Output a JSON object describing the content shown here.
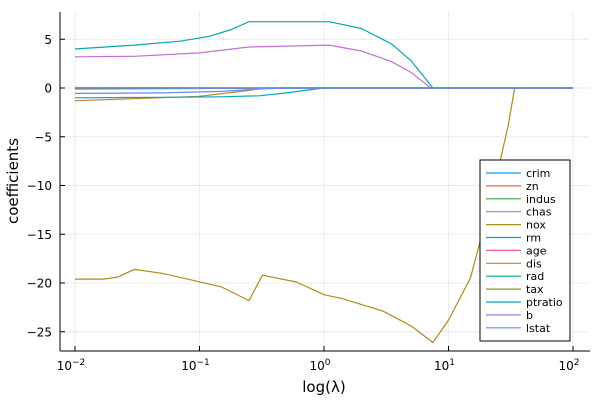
{
  "chart_data": {
    "type": "line",
    "title": "",
    "xlabel": "log(λ)",
    "ylabel": "coefficients",
    "xscale": "log10",
    "xlim": [
      0.008,
      120
    ],
    "ylim": [
      -27.3,
      7.8
    ],
    "grid": true,
    "legend_position": "bottom-right",
    "x_ticks": [
      {
        "value": 0.01,
        "base": "10",
        "exp": "−2"
      },
      {
        "value": 0.1,
        "base": "10",
        "exp": "−1"
      },
      {
        "value": 1,
        "base": "10",
        "exp": "0"
      },
      {
        "value": 10,
        "base": "10",
        "exp": "1"
      },
      {
        "value": 100,
        "base": "10",
        "exp": "2"
      }
    ],
    "y_ticks": [
      {
        "value": 5,
        "label": "5"
      },
      {
        "value": 0,
        "label": "0"
      },
      {
        "value": -5,
        "label": "−5"
      },
      {
        "value": -10,
        "label": "−10"
      },
      {
        "value": -15,
        "label": "−15"
      },
      {
        "value": -20,
        "label": "−20"
      },
      {
        "value": -25,
        "label": "−25"
      }
    ],
    "series": [
      {
        "name": "crim",
        "color": "#009af9",
        "points": [
          [
            0.01,
            -0.1
          ],
          [
            1,
            0
          ],
          [
            100,
            0
          ]
        ]
      },
      {
        "name": "zn",
        "color": "#e26f46",
        "points": [
          [
            0.01,
            0.05
          ],
          [
            1,
            0
          ],
          [
            100,
            0
          ]
        ]
      },
      {
        "name": "indus",
        "color": "#3da44d",
        "points": [
          [
            0.01,
            0.02
          ],
          [
            1,
            0
          ],
          [
            100,
            0
          ]
        ]
      },
      {
        "name": "chas",
        "color": "#c271d2",
        "points": [
          [
            0.01,
            3.2
          ],
          [
            0.03,
            3.25
          ],
          [
            0.1,
            3.6
          ],
          [
            0.25,
            4.2
          ],
          [
            1.1,
            4.4
          ],
          [
            2,
            3.8
          ],
          [
            3.5,
            2.7
          ],
          [
            5,
            1.6
          ],
          [
            6.3,
            0.6
          ],
          [
            7.2,
            0
          ],
          [
            100,
            0
          ]
        ]
      },
      {
        "name": "nox",
        "color": "#ac8d18",
        "points": [
          [
            0.01,
            -19.6
          ],
          [
            0.017,
            -19.6
          ],
          [
            0.022,
            -19.4
          ],
          [
            0.03,
            -18.6
          ],
          [
            0.05,
            -19.0
          ],
          [
            0.08,
            -19.6
          ],
          [
            0.15,
            -20.4
          ],
          [
            0.25,
            -21.8
          ],
          [
            0.32,
            -19.2
          ],
          [
            0.6,
            -19.9
          ],
          [
            1.0,
            -21.2
          ],
          [
            1.4,
            -21.6
          ],
          [
            3,
            -22.9
          ],
          [
            5,
            -24.4
          ],
          [
            7.5,
            -26.1
          ],
          [
            10,
            -23.8
          ],
          [
            15,
            -19.5
          ],
          [
            22,
            -11.5
          ],
          [
            30,
            -4
          ],
          [
            34,
            0
          ],
          [
            100,
            0
          ]
        ]
      },
      {
        "name": "rm",
        "color": "#00a9ad",
        "points": [
          [
            0.01,
            4.0
          ],
          [
            0.03,
            4.4
          ],
          [
            0.07,
            4.8
          ],
          [
            0.12,
            5.3
          ],
          [
            0.18,
            6.0
          ],
          [
            0.25,
            6.8
          ],
          [
            1.1,
            6.8
          ],
          [
            2,
            6.1
          ],
          [
            3.5,
            4.5
          ],
          [
            5,
            2.8
          ],
          [
            6.5,
            1.0
          ],
          [
            7.5,
            0
          ],
          [
            100,
            0
          ]
        ]
      },
      {
        "name": "age",
        "color": "#ed5d92",
        "points": [
          [
            0.01,
            0.03
          ],
          [
            1,
            0
          ],
          [
            100,
            0
          ]
        ]
      },
      {
        "name": "dis",
        "color": "#c68225",
        "points": [
          [
            0.01,
            -1.3
          ],
          [
            0.03,
            -1.1
          ],
          [
            0.1,
            -0.85
          ],
          [
            0.2,
            -0.4
          ],
          [
            0.3,
            -0.1
          ],
          [
            0.35,
            0
          ],
          [
            100,
            0
          ]
        ]
      },
      {
        "name": "rad",
        "color": "#00a98d",
        "points": [
          [
            0.01,
            -0.05
          ],
          [
            1,
            0
          ],
          [
            100,
            0
          ]
        ]
      },
      {
        "name": "tax",
        "color": "#8e971e",
        "points": [
          [
            0.01,
            -0.01
          ],
          [
            1,
            0
          ],
          [
            100,
            0
          ]
        ]
      },
      {
        "name": "ptratio",
        "color": "#00a8cb",
        "points": [
          [
            0.01,
            -1.0
          ],
          [
            0.05,
            -0.95
          ],
          [
            0.15,
            -0.9
          ],
          [
            0.3,
            -0.8
          ],
          [
            0.5,
            -0.5
          ],
          [
            0.8,
            -0.15
          ],
          [
            1.0,
            0
          ],
          [
            100,
            0
          ]
        ]
      },
      {
        "name": "b",
        "color": "#9b7fe9",
        "points": [
          [
            0.01,
            0.01
          ],
          [
            1,
            0
          ],
          [
            100,
            0
          ]
        ]
      },
      {
        "name": "lstat",
        "color": "#618df6",
        "points": [
          [
            0.01,
            -0.55
          ],
          [
            0.05,
            -0.5
          ],
          [
            0.15,
            -0.35
          ],
          [
            0.3,
            -0.1
          ],
          [
            0.5,
            0
          ],
          [
            100,
            0
          ]
        ]
      }
    ]
  }
}
